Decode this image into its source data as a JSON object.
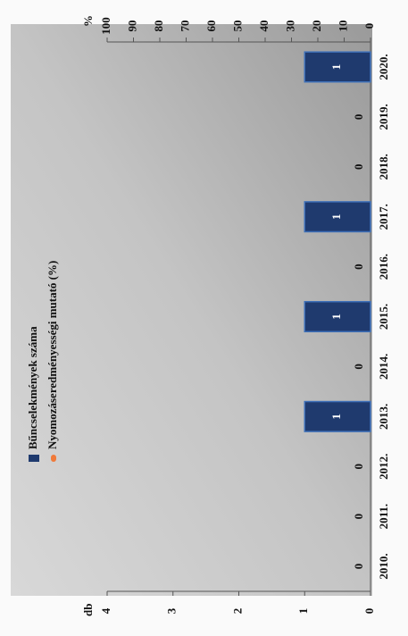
{
  "chart_data": {
    "type": "bar",
    "categories": [
      "2010.",
      "2011.",
      "2012.",
      "2013.",
      "2014.",
      "2015.",
      "2016.",
      "2017.",
      "2018.",
      "2019.",
      "2020."
    ],
    "series": [
      {
        "name": "Bűncselekmények száma",
        "color": "#1f3a6e",
        "values": [
          0,
          0,
          0,
          1,
          0,
          1,
          0,
          1,
          0,
          0,
          1
        ]
      },
      {
        "name": "Nyomozáseredményességi mutató (%)",
        "color": "#f07a3a",
        "axis": "y2",
        "values": [
          null,
          null,
          null,
          null,
          null,
          null,
          null,
          null,
          null,
          null,
          null
        ]
      }
    ],
    "y_label": "db",
    "y2_label": "%",
    "ylim": [
      0,
      4
    ],
    "yticks": [
      0,
      1,
      2,
      3,
      4
    ],
    "y2lim": [
      0,
      100
    ],
    "y2ticks": [
      0,
      10,
      20,
      30,
      40,
      50,
      60,
      70,
      80,
      90,
      100
    ]
  }
}
